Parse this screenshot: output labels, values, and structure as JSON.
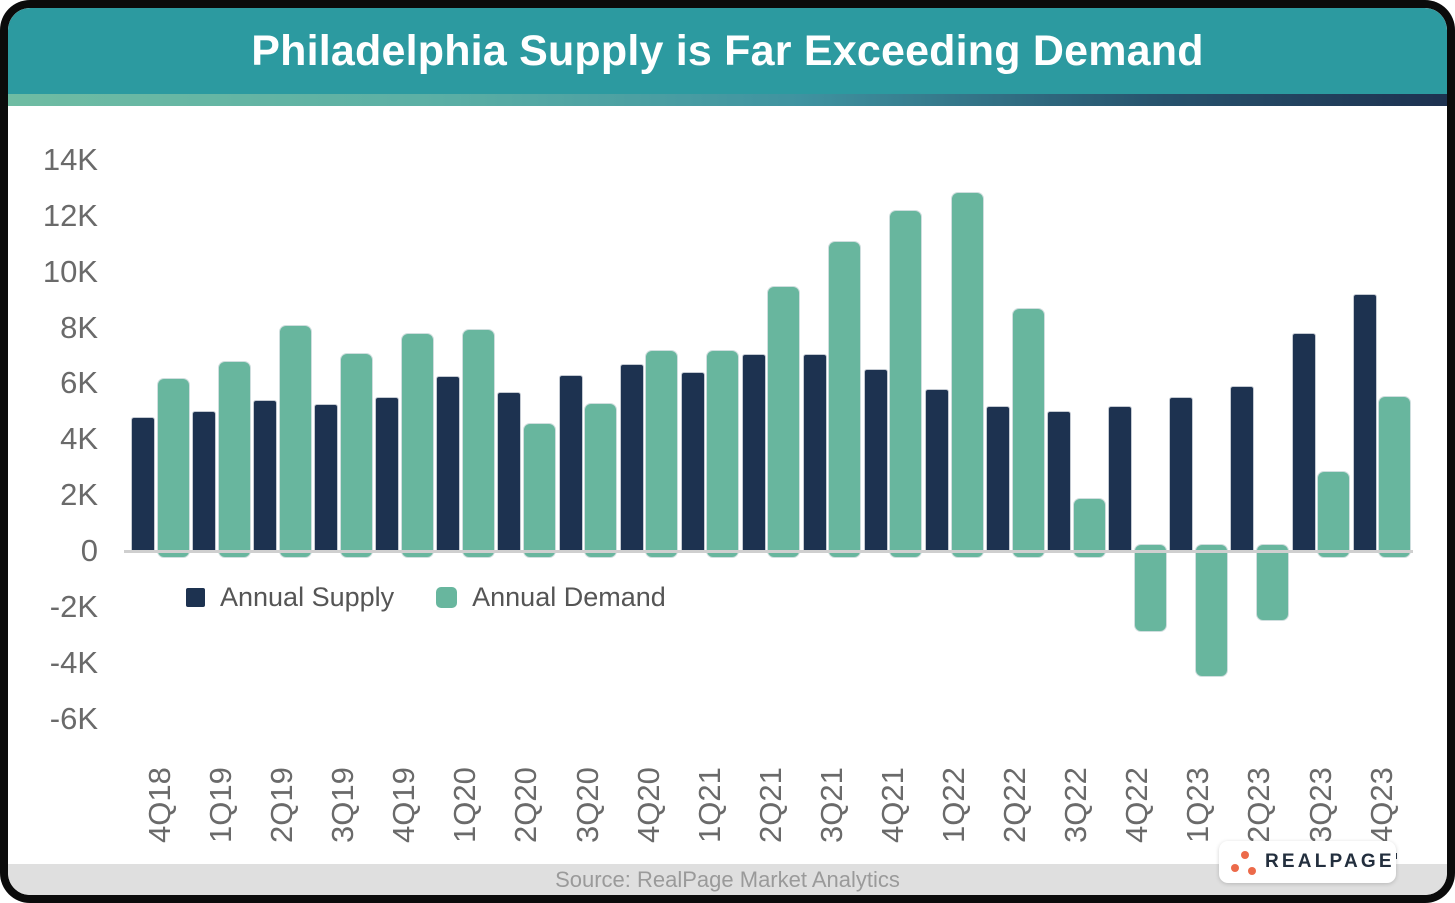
{
  "header": {
    "title": "Philadelphia Supply is Far Exceeding Demand"
  },
  "footer": {
    "source_text": "Source: RealPage Market Analytics",
    "logo_text": "REALPAGE"
  },
  "colors": {
    "header_teal": "#2c9aa0",
    "strip_gradient_left_green": "#6fbca3",
    "strip_gradient_right_navy": "#1d3150",
    "supply_navy": "#1d3250",
    "demand_green": "#68b69e",
    "axis_text_gray": "#6a6a6a",
    "legend_text_gray": "#555555",
    "axis_line_gray": "#cfcfcf",
    "source_bar_bg": "#dfdfdf",
    "source_text_gray": "#9a9a9a",
    "logo_orange": "#ec6a4a",
    "logo_navy": "#232f3e",
    "frame_black": "#0b0b0b"
  },
  "chart_data": {
    "type": "bar",
    "title": "Philadelphia Supply is Far Exceeding Demand",
    "xlabel": "",
    "ylabel": "",
    "ylim": [
      -6000,
      14000
    ],
    "grid": false,
    "legend_position": "inside-left-below-zero",
    "categories": [
      "4Q18",
      "1Q19",
      "2Q19",
      "3Q19",
      "4Q19",
      "1Q20",
      "2Q20",
      "3Q20",
      "4Q20",
      "1Q21",
      "2Q21",
      "3Q21",
      "4Q21",
      "1Q22",
      "2Q22",
      "3Q22",
      "4Q22",
      "1Q23",
      "2Q23",
      "3Q23",
      "4Q23"
    ],
    "series": [
      {
        "name": "Annual Supply",
        "color": "#1d3250",
        "values": [
          4800,
          5000,
          5400,
          5250,
          5500,
          6250,
          5700,
          6300,
          6700,
          6400,
          7050,
          7050,
          6500,
          5800,
          5200,
          5000,
          5200,
          5500,
          5900,
          7800,
          9200
        ]
      },
      {
        "name": "Annual Demand",
        "color": "#68b69e",
        "values": [
          6200,
          6800,
          8100,
          7100,
          7800,
          7950,
          4600,
          5300,
          7200,
          7200,
          9500,
          11100,
          12200,
          12850,
          8700,
          1900,
          -2900,
          -4500,
          -2500,
          2850,
          5550
        ]
      }
    ],
    "yticks": [
      {
        "label": "14K",
        "value": 14000
      },
      {
        "label": "12K",
        "value": 12000
      },
      {
        "label": "10K",
        "value": 10000
      },
      {
        "label": "8K",
        "value": 8000
      },
      {
        "label": "6K",
        "value": 6000
      },
      {
        "label": "4K",
        "value": 4000
      },
      {
        "label": "2K",
        "value": 2000
      },
      {
        "label": "0",
        "value": 0
      },
      {
        "label": "-2K",
        "value": -2000
      },
      {
        "label": "-4K",
        "value": -4000
      },
      {
        "label": "-6K",
        "value": -6000
      }
    ]
  }
}
